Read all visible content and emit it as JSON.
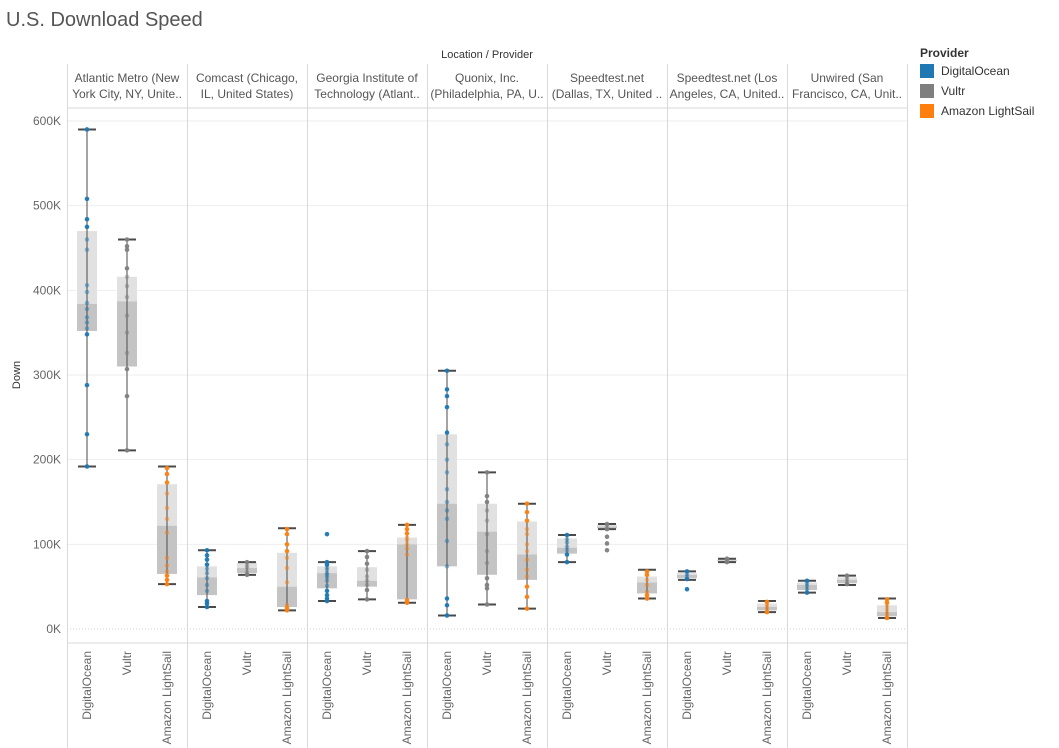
{
  "page": {
    "title": "U.S. Download Speed"
  },
  "legend": {
    "title": "Provider",
    "items": [
      {
        "label": "DigitalOcean",
        "color": "#1f77b4"
      },
      {
        "label": "Vultr",
        "color": "#7f7f7f"
      },
      {
        "label": "Amazon LightSail",
        "color": "#ff7f0e"
      }
    ]
  },
  "chart_data": {
    "type": "box",
    "title": "U.S. Download Speed",
    "column_header": "Location / Provider",
    "ylabel": "Down",
    "ylim": [
      0,
      600000
    ],
    "yticks": [
      {
        "value": 0,
        "label": "0K"
      },
      {
        "value": 100000,
        "label": "100K"
      },
      {
        "value": 200000,
        "label": "200K"
      },
      {
        "value": 300000,
        "label": "300K"
      },
      {
        "value": 400000,
        "label": "400K"
      },
      {
        "value": 500000,
        "label": "500K"
      },
      {
        "value": 600000,
        "label": "600K"
      }
    ],
    "grid": true,
    "legend_position": "right",
    "colors": {
      "DigitalOcean": "#1f77b4",
      "Vultr": "#7f7f7f",
      "Amazon LightSail": "#ff7f0e"
    },
    "groups": [
      {
        "location": "Atlantic Metro (New York City, NY, United States)",
        "label_lines": [
          "Atlantic Metro (New",
          "York City, NY, Unite.."
        ],
        "providers": [
          {
            "provider": "DigitalOcean",
            "min": 192000,
            "q1": 352000,
            "median": 384000,
            "q3": 470000,
            "max": 590000,
            "points": [
              192000,
              230000,
              288000,
              348000,
              355000,
              362000,
              368000,
              378000,
              385000,
              398000,
              406000,
              448000,
              460000,
              475000,
              484000,
              508000,
              590000
            ]
          },
          {
            "provider": "Vultr",
            "min": 211000,
            "q1": 310000,
            "median": 387000,
            "q3": 416000,
            "max": 460000,
            "points": [
              211000,
              275000,
              307000,
              326000,
              350000,
              370000,
              392000,
              405000,
              416000,
              426000,
              448000,
              452000,
              460000
            ]
          },
          {
            "provider": "Amazon LightSail",
            "min": 53000,
            "q1": 65000,
            "median": 122000,
            "q3": 171000,
            "max": 192000,
            "points": [
              53000,
              58000,
              63000,
              68000,
              75000,
              84000,
              114000,
              130000,
              143000,
              160000,
              173000,
              183000,
              190000
            ]
          }
        ]
      },
      {
        "location": "Comcast (Chicago, IL, United States)",
        "label_lines": [
          "Comcast (Chicago,",
          "IL, United States)"
        ],
        "providers": [
          {
            "provider": "DigitalOcean",
            "min": 26000,
            "q1": 40000,
            "median": 61000,
            "q3": 74000,
            "max": 93000,
            "points": [
              26000,
              30000,
              33000,
              45000,
              52000,
              60000,
              66000,
              71000,
              76000,
              82000,
              87000,
              93000
            ]
          },
          {
            "provider": "Vultr",
            "min": 64000,
            "q1": 66000,
            "median": 72000,
            "q3": 78000,
            "max": 79000,
            "points": [
              64000,
              67000,
              72000,
              75000,
              79000
            ]
          },
          {
            "provider": "Amazon LightSail",
            "min": 22000,
            "q1": 26000,
            "median": 50000,
            "q3": 90000,
            "max": 119000,
            "points": [
              22000,
              25000,
              28000,
              55000,
              72000,
              84000,
              92000,
              100000,
              112000,
              118000
            ]
          }
        ]
      },
      {
        "location": "Georgia Institute of Technology (Atlanta, GA, United States)",
        "label_lines": [
          "Georgia Institute of",
          "Technology (Atlant.."
        ],
        "providers": [
          {
            "provider": "DigitalOcean",
            "min": 33000,
            "q1": 48000,
            "median": 66000,
            "q3": 74000,
            "max": 79000,
            "points": [
              33000,
              36000,
              40000,
              45000,
              51000,
              57000,
              61000,
              64000,
              66000,
              70000,
              73000,
              76000,
              79000,
              112000
            ]
          },
          {
            "provider": "Vultr",
            "min": 35000,
            "q1": 50000,
            "median": 57000,
            "q3": 73000,
            "max": 92000,
            "points": [
              35000,
              46000,
              52000,
              57000,
              62000,
              70000,
              77000,
              85000,
              92000
            ]
          },
          {
            "provider": "Amazon LightSail",
            "min": 31000,
            "q1": 35000,
            "median": 100000,
            "q3": 108000,
            "max": 123000,
            "points": [
              31000,
              34000,
              88000,
              95000,
              100000,
              105000,
              108000,
              113000,
              118000,
              123000
            ]
          }
        ]
      },
      {
        "location": "Quonix, Inc. (Philadelphia, PA, United States)",
        "label_lines": [
          "Quonix, Inc.",
          "(Philadelphia, PA, U.."
        ],
        "providers": [
          {
            "provider": "DigitalOcean",
            "min": 16000,
            "q1": 74000,
            "median": 148000,
            "q3": 230000,
            "max": 305000,
            "points": [
              16000,
              28000,
              36000,
              74000,
              104000,
              130000,
              140000,
              150000,
              165000,
              185000,
              200000,
              218000,
              232000,
              262000,
              275000,
              283000,
              305000
            ]
          },
          {
            "provider": "Vultr",
            "min": 29000,
            "q1": 64000,
            "median": 115000,
            "q3": 148000,
            "max": 185000,
            "points": [
              29000,
              48000,
              52000,
              60000,
              78000,
              92000,
              112000,
              128000,
              140000,
              150000,
              157000,
              185000
            ]
          },
          {
            "provider": "Amazon LightSail",
            "min": 24000,
            "q1": 58000,
            "median": 88000,
            "q3": 127000,
            "max": 148000,
            "points": [
              24000,
              38000,
              50000,
              62000,
              70000,
              82000,
              92000,
              100000,
              112000,
              118000,
              128000,
              138000,
              148000
            ]
          }
        ]
      },
      {
        "location": "Speedtest.net (Dallas, TX, United States)",
        "label_lines": [
          "Speedtest.net",
          "(Dallas, TX, United .."
        ],
        "providers": [
          {
            "provider": "DigitalOcean",
            "min": 79000,
            "q1": 89000,
            "median": 96000,
            "q3": 107000,
            "max": 111000,
            "points": [
              79000,
              88000,
              93000,
              97000,
              102000,
              106000,
              111000
            ]
          },
          {
            "provider": "Vultr",
            "min": 118000,
            "q1": 119000,
            "median": 121000,
            "q3": 123000,
            "max": 124000,
            "points": [
              93000,
              101000,
              109000,
              118000,
              121000,
              124000
            ]
          },
          {
            "provider": "Amazon LightSail",
            "min": 36000,
            "q1": 42000,
            "median": 55000,
            "q3": 62000,
            "max": 70000,
            "points": [
              36000,
              40000,
              44000,
              52000,
              58000,
              64000,
              68000
            ]
          }
        ]
      },
      {
        "location": "Speedtest.net (Los Angeles, CA, United States)",
        "label_lines": [
          "Speedtest.net (Los",
          "Angeles, CA, United.."
        ],
        "providers": [
          {
            "provider": "DigitalOcean",
            "min": 58000,
            "q1": 60000,
            "median": 64000,
            "q3": 66000,
            "max": 68000,
            "points": [
              47000,
              59000,
              62000,
              65000,
              68000
            ]
          },
          {
            "provider": "Vultr",
            "min": 79000,
            "q1": 80000,
            "median": 81000,
            "q3": 82000,
            "max": 83000,
            "points": [
              79000,
              81000,
              83000
            ]
          },
          {
            "provider": "Amazon LightSail",
            "min": 20000,
            "q1": 22000,
            "median": 26000,
            "q3": 30000,
            "max": 33000,
            "points": [
              20000,
              23000,
              26000,
              29000,
              32000
            ]
          }
        ]
      },
      {
        "location": "Unwired (San Francisco, CA, United States)",
        "label_lines": [
          "Unwired (San",
          "Francisco, CA, Unit.."
        ],
        "providers": [
          {
            "provider": "DigitalOcean",
            "min": 43000,
            "q1": 46000,
            "median": 52000,
            "q3": 55000,
            "max": 57000,
            "points": [
              43000,
              47000,
              51000,
              54000,
              57000
            ]
          },
          {
            "provider": "Vultr",
            "min": 52000,
            "q1": 54000,
            "median": 58000,
            "q3": 61000,
            "max": 63000,
            "points": [
              53000,
              57000,
              60000,
              63000
            ]
          },
          {
            "provider": "Amazon LightSail",
            "min": 13000,
            "q1": 15000,
            "median": 20000,
            "q3": 28000,
            "max": 36000,
            "points": [
              13000,
              16000,
              19000,
              23000,
              27000,
              31000,
              35000
            ]
          }
        ]
      }
    ]
  }
}
